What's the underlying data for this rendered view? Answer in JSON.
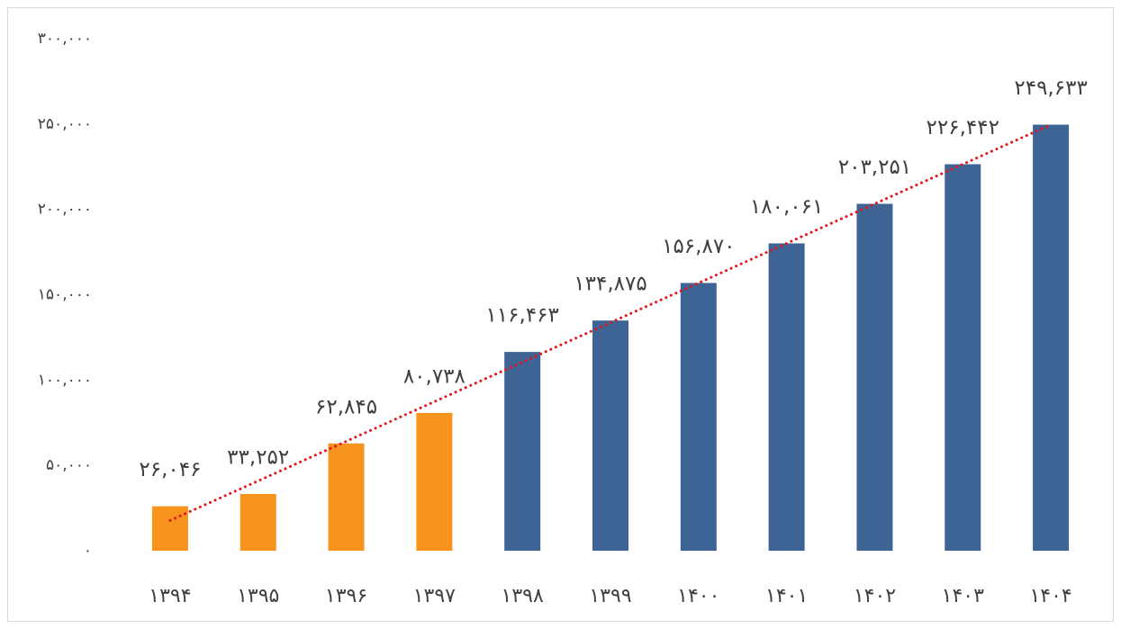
{
  "chart_data": {
    "type": "bar",
    "categories": [
      "۱۳۹۴",
      "۱۳۹۵",
      "۱۳۹۶",
      "۱۳۹۷",
      "۱۳۹۸",
      "۱۳۹۹",
      "۱۴۰۰",
      "۱۴۰۱",
      "۱۴۰۲",
      "۱۴۰۳",
      "۱۴۰۴"
    ],
    "values": [
      26046,
      33252,
      62845,
      80738,
      116463,
      134875,
      156870,
      180061,
      203251,
      226442,
      249633
    ],
    "value_labels": [
      "۲۶,۰۴۶",
      "۳۳,۲۵۲",
      "۶۲,۸۴۵",
      "۸۰,۷۳۸",
      "۱۱۶,۴۶۳",
      "۱۳۴,۸۷۵",
      "۱۵۶,۸۷۰",
      "۱۸۰,۰۶۱",
      "۲۰۳,۲۵۱",
      "۲۲۶,۴۴۲",
      "۲۴۹,۶۳۳"
    ],
    "colors": [
      "#f7941d",
      "#f7941d",
      "#f7941d",
      "#f7941d",
      "#3e6496",
      "#3e6496",
      "#3e6496",
      "#3e6496",
      "#3e6496",
      "#3e6496",
      "#3e6496"
    ],
    "ylim": [
      0,
      300000
    ],
    "yticks": [
      {
        "value": 0,
        "label": "۰"
      },
      {
        "value": 50000,
        "label": "۵۰,۰۰۰"
      },
      {
        "value": 100000,
        "label": "۱۰۰,۰۰۰"
      },
      {
        "value": 150000,
        "label": "۱۵۰,۰۰۰"
      },
      {
        "value": 200000,
        "label": "۲۰۰,۰۰۰"
      },
      {
        "value": 250000,
        "label": "۲۵۰,۰۰۰"
      },
      {
        "value": 300000,
        "label": "۳۰۰,۰۰۰"
      }
    ],
    "grid": false,
    "trendline": {
      "type": "linear",
      "color": "#e0161b"
    }
  }
}
